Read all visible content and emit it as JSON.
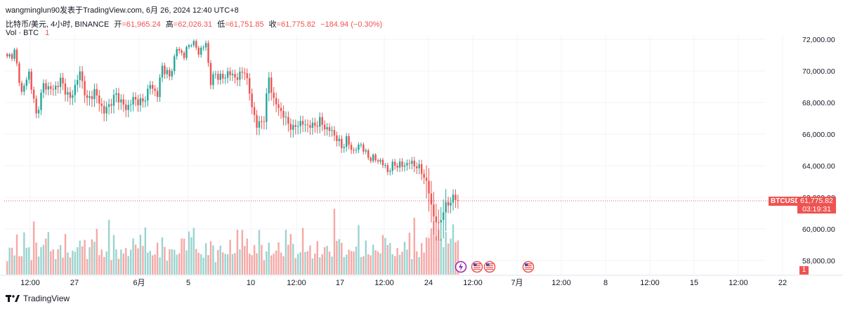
{
  "header": {
    "watermark_text": "wangminglun90发表于TradingView.com, 6月 26, 2024 12:40 UTC+8"
  },
  "legend": {
    "symbol": "比特币/美元, 4小时, BINANCE",
    "open_label": "开",
    "open_value": "=61,965.24",
    "high_label": "高",
    "high_value": "=62,026.31",
    "low_label": "低",
    "low_value": "=61,751.85",
    "close_label": "收",
    "close_value": "=61,775.82",
    "change": "−184.94 (−0.30%)",
    "volume_label": "Vol · BTC",
    "volume_value": "1"
  },
  "price_tag": {
    "symbol": "BTCUSD",
    "price": "61,775.82",
    "countdown": "03:19:31"
  },
  "footer": {
    "brand": "TradingView",
    "axis_badge": "1"
  },
  "colors": {
    "up": "#26a69a",
    "down": "#ef5350",
    "up_volume": "#9bd4cf",
    "down_volume": "#f6a8a6",
    "grid": "#f0f3fa"
  },
  "chart_data": {
    "type": "candlestick",
    "title": "",
    "xlabel": "",
    "ylabel": "",
    "ylim": [
      57000,
      72800
    ],
    "yticks": [
      "72,000.00",
      "70,000.00",
      "68,000.00",
      "66,000.00",
      "64,000.00",
      "62,000.00",
      "60,000.00",
      "58,000.00"
    ],
    "ytick_values": [
      72000,
      70000,
      68000,
      66000,
      64000,
      62000,
      60000,
      58000
    ],
    "xticks": [
      "12:00",
      "27",
      "6月",
      "5",
      "10",
      "12:00",
      "17",
      "12:00",
      "24",
      "12:00",
      "7月",
      "12:00",
      "8",
      "12:00",
      "15",
      "12:00",
      "22"
    ],
    "current_price": 61775.82,
    "event_markers": [
      "lightning-icon",
      "us-flag-icon",
      "us-flag-icon",
      "us-flag-icon"
    ],
    "anchors": [
      [
        0,
        70800
      ],
      [
        3,
        71200
      ],
      [
        6,
        68600
      ],
      [
        9,
        69900
      ],
      [
        12,
        67200
      ],
      [
        15,
        69100
      ],
      [
        19,
        68800
      ],
      [
        22,
        69400
      ],
      [
        26,
        68200
      ],
      [
        30,
        69900
      ],
      [
        33,
        68100
      ],
      [
        36,
        68700
      ],
      [
        40,
        67400
      ],
      [
        45,
        68500
      ],
      [
        49,
        67600
      ],
      [
        52,
        68200
      ],
      [
        56,
        68000
      ],
      [
        59,
        69100
      ],
      [
        62,
        68500
      ],
      [
        64,
        70300
      ],
      [
        67,
        69600
      ],
      [
        70,
        71400
      ],
      [
        73,
        71000
      ],
      [
        76,
        71900
      ],
      [
        79,
        71200
      ],
      [
        82,
        71700
      ],
      [
        84,
        69300
      ],
      [
        86,
        69800
      ],
      [
        89,
        69500
      ],
      [
        91,
        69900
      ],
      [
        94,
        69600
      ],
      [
        96,
        69700
      ],
      [
        98,
        70100
      ],
      [
        101,
        67800
      ],
      [
        103,
        66500
      ],
      [
        106,
        67000
      ],
      [
        108,
        69600
      ],
      [
        110,
        68100
      ],
      [
        112,
        67700
      ],
      [
        115,
        66900
      ],
      [
        118,
        66300
      ],
      [
        120,
        66700
      ],
      [
        123,
        66600
      ],
      [
        126,
        66500
      ],
      [
        129,
        66800
      ],
      [
        132,
        66300
      ],
      [
        134,
        66200
      ],
      [
        136,
        65700
      ],
      [
        138,
        65200
      ],
      [
        140,
        65600
      ],
      [
        143,
        64900
      ],
      [
        146,
        65400
      ],
      [
        148,
        64700
      ],
      [
        150,
        64500
      ],
      [
        152,
        64400
      ],
      [
        154,
        64300
      ],
      [
        157,
        63700
      ],
      [
        160,
        64100
      ],
      [
        163,
        64000
      ],
      [
        166,
        64200
      ],
      [
        169,
        64000
      ],
      [
        172,
        63400
      ],
      [
        174,
        62300
      ],
      [
        176,
        60800
      ],
      [
        178,
        60200
      ],
      [
        180,
        61200
      ],
      [
        182,
        61600
      ],
      [
        184,
        62000
      ],
      [
        186,
        61775.82
      ]
    ],
    "volume_profile": [
      0.35,
      0.5,
      0.6,
      0.4,
      0.8,
      0.55,
      0.3,
      0.45,
      0.65,
      0.5,
      0.35,
      0.6,
      0.7,
      0.4,
      0.5,
      0.9,
      0.75,
      0.95,
      0.6,
      0.45
    ]
  }
}
